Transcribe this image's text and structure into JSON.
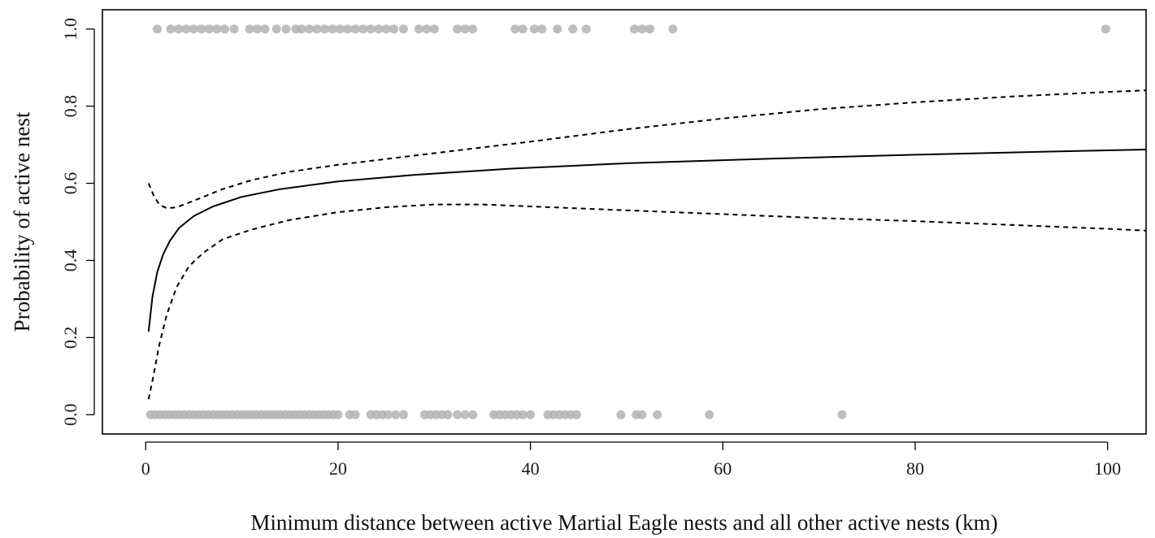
{
  "chart_data": {
    "type": "scatter",
    "title": "",
    "xlabel": "Minimum distance between active Martial Eagle nests and all other active nests (km)",
    "ylabel": "Probability of active nest",
    "xlim": [
      -4.5,
      104
    ],
    "ylim": [
      -0.05,
      1.05
    ],
    "x_ticks": [
      "0",
      "20",
      "40",
      "60",
      "80",
      "100"
    ],
    "x_tick_values": [
      0,
      20,
      40,
      60,
      80,
      100
    ],
    "y_ticks": [
      "0.0",
      "0.2",
      "0.4",
      "0.6",
      "0.8",
      "1.0"
    ],
    "y_tick_values": [
      0,
      0.2,
      0.4,
      0.6,
      0.8,
      1.0
    ],
    "grid": false,
    "legend": "none",
    "colors": {
      "points": "#b3b3b3",
      "fit": "#000000",
      "ci": "#000000",
      "axes": "#000000"
    },
    "series": [
      {
        "kind": "points",
        "y": 1,
        "x": [
          1.2,
          2.6,
          3.4,
          4.2,
          5.0,
          5.8,
          6.6,
          7.4,
          8.2,
          9.2,
          10.8,
          11.6,
          12.4,
          13.6,
          14.6,
          15.6,
          16.2,
          17.0,
          17.8,
          18.6,
          19.4,
          20.2,
          21.0,
          21.8,
          22.6,
          23.4,
          24.2,
          25.0,
          25.8,
          26.8,
          28.4,
          29.2,
          30.0,
          32.4,
          33.2,
          34.0,
          38.4,
          39.2,
          40.4,
          41.2,
          42.8,
          44.4,
          45.8,
          50.8,
          51.6,
          52.4,
          54.8,
          99.8
        ]
      },
      {
        "kind": "points",
        "y": 0,
        "x": [
          0.5,
          1.0,
          1.5,
          2.0,
          2.5,
          3.0,
          3.5,
          4.0,
          4.5,
          5.0,
          5.5,
          6.0,
          6.5,
          7.0,
          7.5,
          8.0,
          8.5,
          9.0,
          9.5,
          10.0,
          10.5,
          11.0,
          11.5,
          12.0,
          12.5,
          13.0,
          13.5,
          14.0,
          14.5,
          15.0,
          15.5,
          16.0,
          16.5,
          17.0,
          17.5,
          18.0,
          18.5,
          19.0,
          19.5,
          20.0,
          21.2,
          21.8,
          23.4,
          24.0,
          24.6,
          25.2,
          26.0,
          26.8,
          29.0,
          29.6,
          30.2,
          30.8,
          31.4,
          32.4,
          33.2,
          34.0,
          36.2,
          36.8,
          37.4,
          38.0,
          38.6,
          39.2,
          40.0,
          41.8,
          42.4,
          43.0,
          43.6,
          44.2,
          44.8,
          49.4,
          51.0,
          51.6,
          53.2,
          58.6,
          72.4
        ]
      },
      {
        "kind": "line",
        "style": "solid",
        "name": "",
        "x": [
          0.3,
          0.7,
          1.2,
          1.8,
          2.5,
          3.5,
          5,
          7,
          10,
          14,
          20,
          28,
          38,
          50,
          65,
          80,
          95,
          105
        ],
        "y": [
          0.215,
          0.305,
          0.37,
          0.415,
          0.45,
          0.485,
          0.515,
          0.54,
          0.565,
          0.585,
          0.605,
          0.622,
          0.638,
          0.652,
          0.664,
          0.674,
          0.683,
          0.688
        ]
      },
      {
        "kind": "line",
        "style": "dashed",
        "name": "",
        "x": [
          0.3,
          0.8,
          1.4,
          2.2,
          3.2,
          4.5,
          6,
          8,
          11,
          15,
          20,
          30,
          40,
          50,
          60,
          70,
          80,
          90,
          100,
          105
        ],
        "y": [
          0.6,
          0.57,
          0.545,
          0.535,
          0.538,
          0.55,
          0.565,
          0.585,
          0.608,
          0.63,
          0.648,
          0.678,
          0.708,
          0.74,
          0.768,
          0.792,
          0.81,
          0.825,
          0.837,
          0.842
        ]
      },
      {
        "kind": "line",
        "style": "dashed",
        "name": "",
        "x": [
          0.3,
          0.8,
          1.4,
          2.2,
          3.2,
          4.5,
          6,
          8,
          11,
          15,
          20,
          25,
          30,
          35,
          40,
          50,
          60,
          70,
          80,
          90,
          100,
          105
        ],
        "y": [
          0.04,
          0.1,
          0.18,
          0.26,
          0.33,
          0.385,
          0.42,
          0.455,
          0.48,
          0.505,
          0.525,
          0.538,
          0.545,
          0.545,
          0.54,
          0.53,
          0.52,
          0.51,
          0.502,
          0.492,
          0.482,
          0.476
        ]
      }
    ]
  }
}
